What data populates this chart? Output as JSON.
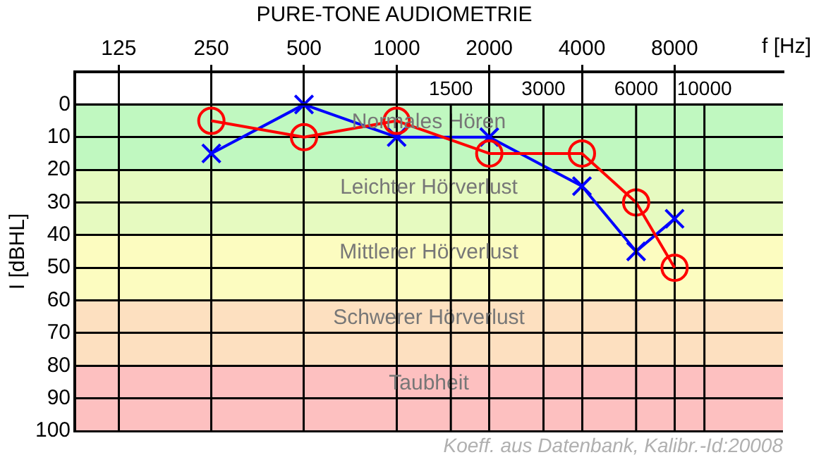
{
  "chart_data": {
    "type": "line",
    "title": "PURE-TONE AUDIOMETRIE",
    "xlabel": "f [Hz]",
    "ylabel": "I [dBHL]",
    "log": "x",
    "x": [
      250,
      500,
      1000,
      2000,
      4000,
      6000,
      8000
    ],
    "series": [
      {
        "color": "#ff0000",
        "marker": "circle",
        "values": [
          5,
          10,
          5,
          15,
          15,
          30,
          50
        ]
      },
      {
        "color": "#0000ff",
        "marker": "cross",
        "values": [
          15,
          0,
          10,
          10,
          25,
          45,
          35
        ]
      }
    ],
    "xlim": [
      90,
      18000
    ],
    "xticks": [
      125,
      250,
      500,
      1000,
      2000,
      4000,
      8000
    ],
    "ylim": [
      100,
      -10
    ],
    "yticks": [
      0,
      10,
      20,
      30,
      40,
      50,
      60,
      70,
      80,
      90,
      100
    ],
    "bands": [
      {
        "axis": "y",
        "from": 0,
        "to": 20,
        "label": "Normales Hören",
        "color": "#c0f8c0"
      },
      {
        "axis": "y",
        "from": 20,
        "to": 40,
        "label": "Leichter Hörverlust",
        "color": "#e6fac0"
      },
      {
        "axis": "y",
        "from": 40,
        "to": 60,
        "label": "Mittlerer Hörverlust",
        "color": "#fcfcc0"
      },
      {
        "axis": "y",
        "from": 60,
        "to": 80,
        "label": "Schwerer Hörverlust",
        "color": "#fde0c0"
      },
      {
        "axis": "y",
        "from": 80,
        "to": 100,
        "label": "Taubheit",
        "color": "#fdc0c0"
      }
    ],
    "ref_lines": [
      {
        "axis": "x",
        "value": 1500,
        "label": "1500",
        "color": "#000000"
      },
      {
        "axis": "x",
        "value": 3000,
        "label": "3000",
        "color": "#000000"
      },
      {
        "axis": "x",
        "value": 6000,
        "label": "6000",
        "color": "#000000"
      },
      {
        "axis": "x",
        "value": 10000,
        "label": "10000",
        "color": "#000000"
      }
    ],
    "annotations": [
      "Koeff. aus Datenbank, Kalibr.-Id:20008"
    ],
    "grid": true,
    "legend": false
  }
}
